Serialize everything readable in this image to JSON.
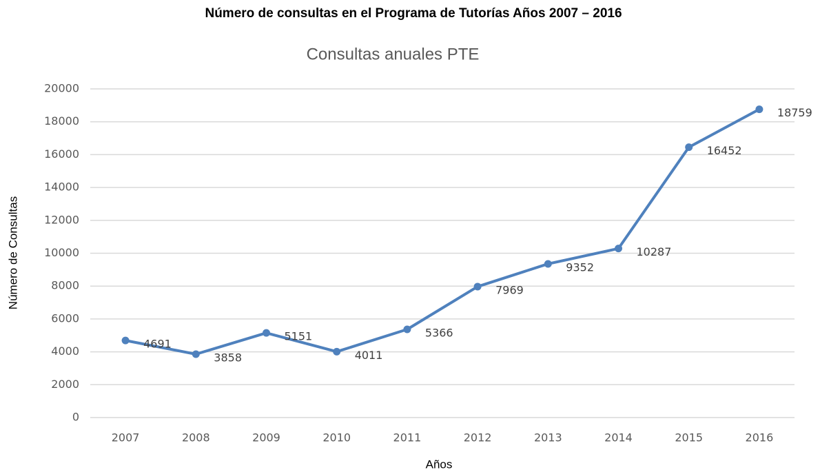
{
  "chart_data": {
    "type": "line",
    "title": "Número de consultas en el Programa de Tutorías Años  2007 – 2016",
    "subtitle": "Consultas anuales PTE",
    "x_label": "Años",
    "y_label": "Número de Consultas",
    "categories": [
      "2007",
      "2008",
      "2009",
      "2010",
      "2011",
      "2012",
      "2013",
      "2014",
      "2015",
      "2016"
    ],
    "values": [
      4691,
      3858,
      5151,
      4011,
      5366,
      7969,
      9352,
      10287,
      16452,
      18759
    ],
    "color": "#4f81bd",
    "ylim": [
      0,
      20000
    ],
    "yticks": [
      0,
      2000,
      4000,
      6000,
      8000,
      10000,
      12000,
      14000,
      16000,
      18000,
      20000
    ],
    "grid": true
  }
}
